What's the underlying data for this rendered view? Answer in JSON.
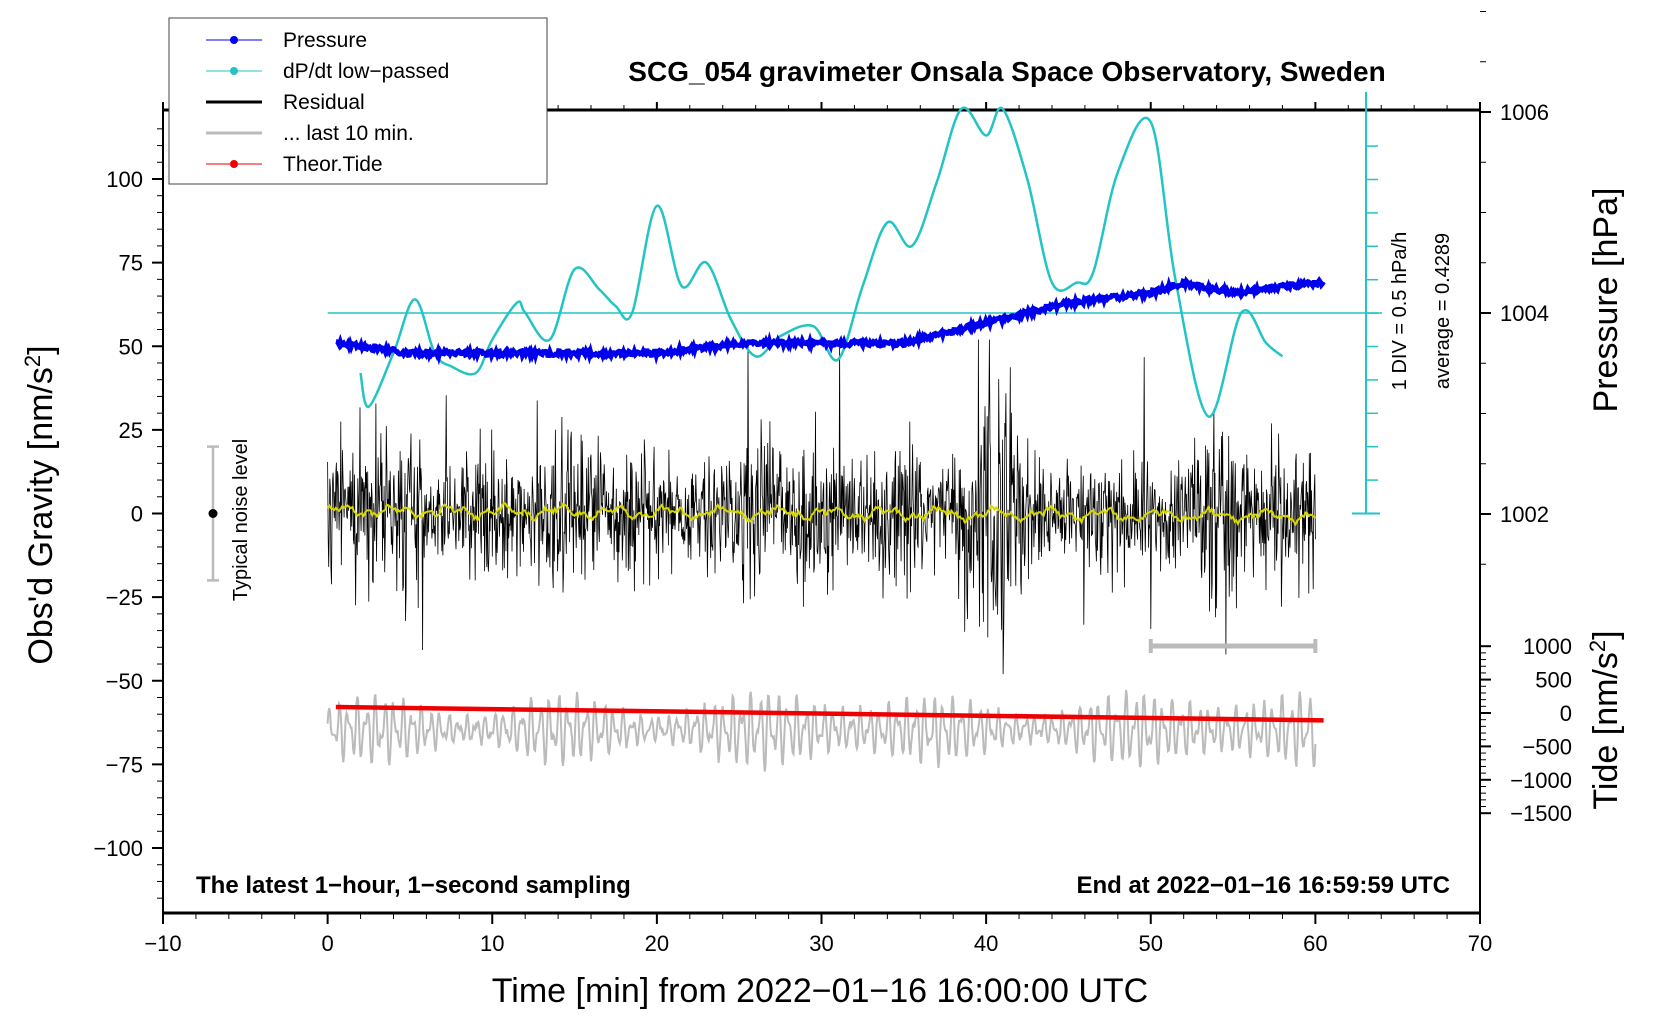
{
  "chart_data": {
    "type": "line",
    "title": "SCG_054 gravimeter Onsala Space Observatory, Sweden",
    "xlabel": "Time [min] from 2022−01−16 16:00:00 UTC",
    "ylabel_main": "Obs'd Gravity [nm/s",
    "ylabel_main_sup": "2",
    "ylabel_main_end": "]",
    "ylabel_pressure": "Pressure [hPa]",
    "ylabel_tide": "Tide [nm/s",
    "ylabel_tide_sup": "2",
    "ylabel_tide_end": "]",
    "xlim": [
      -10,
      70
    ],
    "ylim": [
      -120,
      120
    ],
    "x_ticks": [
      -10,
      0,
      10,
      20,
      30,
      40,
      50,
      60,
      70
    ],
    "x_tick_labels": [
      "−10",
      "0",
      "10",
      "20",
      "30",
      "40",
      "50",
      "60",
      "70"
    ],
    "y_ticks": [
      100,
      75,
      50,
      25,
      0,
      -25,
      -50,
      -75,
      -100
    ],
    "y_tick_labels": [
      "100",
      "75",
      "50",
      "25",
      "0",
      "−25",
      "−50",
      "−75",
      "−100"
    ],
    "pressure_axis": {
      "ticks": [
        1006,
        1004,
        1002
      ],
      "tick_labels": [
        "1006",
        "1004",
        "1002"
      ]
    },
    "tide_axis": {
      "ticks": [
        1000,
        500,
        0,
        -500,
        -1000,
        -1500
      ],
      "tick_labels": [
        "1000",
        "500",
        "0",
        "−500",
        "−1000",
        "−1500"
      ]
    },
    "legend": [
      {
        "name": "Pressure",
        "color": "#0000ee",
        "marker": true
      },
      {
        "name": "dP/dt low−passed",
        "color": "#22c4c4",
        "marker": true
      },
      {
        "name": "Residual",
        "color": "#000000",
        "marker": false
      },
      {
        "name": "... last 10 min.",
        "color": "#bbbbbb",
        "marker": false
      },
      {
        "name": "Theor.Tide",
        "color": "#ee0000",
        "marker": true
      }
    ],
    "annotations": {
      "noise_label": "Typical noise level",
      "noise_range": [
        -20,
        20
      ],
      "dpdt_scale": "1 DIV = 0.5 hPa/h",
      "dpdt_average": "average = 0.4289",
      "bottom_left": "The latest 1−hour, 1−second sampling",
      "bottom_right": "End at 2022−01−16 16:59:59 UTC",
      "last10_bracket": [
        50,
        60
      ]
    },
    "series": [
      {
        "name": "Pressure",
        "unit": "hPa",
        "x": [
          0.5,
          5,
          10,
          15,
          20,
          25,
          30,
          35,
          40,
          45,
          50,
          52,
          55,
          60
        ],
        "values": [
          1003.7,
          1003.6,
          1003.6,
          1003.6,
          1003.6,
          1003.7,
          1003.7,
          1003.7,
          1003.9,
          1004.1,
          1004.2,
          1004.3,
          1004.2,
          1004.3
        ]
      },
      {
        "name": "dP/dt low−passed",
        "unit": "nm/s2-equivalent plot units",
        "x": [
          2,
          2.5,
          4,
          5.3,
          6.5,
          7.5,
          9,
          10,
          11.5,
          12,
          13.5,
          15,
          16.5,
          17.5,
          18.5,
          20,
          21.5,
          23,
          24.5,
          26,
          27.5,
          29.5,
          31,
          32.5,
          34,
          35.5,
          37,
          38.5,
          40,
          41,
          42.5,
          44,
          45.5,
          46.5,
          48,
          50,
          51.5,
          53.5,
          55.5,
          57,
          58
        ],
        "values": [
          42,
          32,
          48,
          64,
          48,
          44,
          42,
          52,
          63,
          60,
          52,
          73,
          67,
          62,
          60,
          92,
          68,
          75,
          58,
          47,
          53,
          56,
          46,
          68,
          87,
          80,
          99,
          121,
          113,
          121,
          100,
          69,
          69,
          72,
          102,
          117,
          70,
          29,
          60,
          51,
          47
        ]
      },
      {
        "name": "Theor.Tide",
        "unit": "nm/s2 (tide axis)",
        "x": [
          0.5,
          60.5
        ],
        "values": [
          90,
          -110
        ]
      }
    ]
  }
}
